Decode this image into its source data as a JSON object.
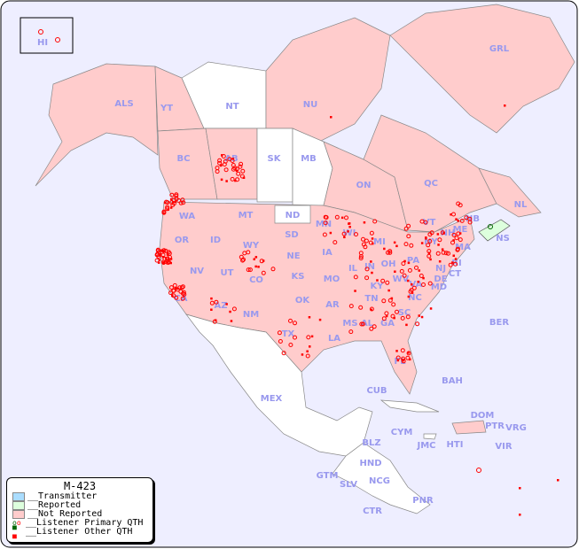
{
  "map": {
    "colors": {
      "ocean": "#eeeeff",
      "not_reported": "#ffcccc",
      "reported": "#ddffdd",
      "transmitter": "#aaddff",
      "no_data": "#ffffff",
      "label": "#9999ee",
      "dot": "#ff0000",
      "primary_dot_green": "#006600"
    },
    "regions": [
      "HI",
      "ALS",
      "YT",
      "NT",
      "NU",
      "GRL",
      "BC",
      "AB",
      "SK",
      "MB",
      "ON",
      "QC",
      "NL",
      "NB",
      "NS",
      "ME",
      "VT",
      "NH",
      "MA",
      "RI",
      "CT",
      "NY",
      "PA",
      "NJ",
      "DE",
      "MD",
      "WA",
      "OR",
      "ID",
      "MT",
      "WY",
      "ND",
      "SD",
      "NE",
      "MN",
      "WI",
      "IA",
      "MI",
      "IL",
      "IN",
      "OH",
      "KS",
      "MO",
      "KY",
      "WV",
      "VA",
      "NV",
      "UT",
      "CO",
      "CA",
      "AZ",
      "NM",
      "OK",
      "AR",
      "TN",
      "NC",
      "SC",
      "MS",
      "AL",
      "GA",
      "TX",
      "LA",
      "FL",
      "MEX",
      "CUB",
      "BAH",
      "BER",
      "DOM",
      "PTR",
      "VRG",
      "CYM",
      "JMC",
      "HTI",
      "VIR",
      "BLZ",
      "HND",
      "GTM",
      "SLV",
      "NCG",
      "CTR",
      "PNR"
    ]
  },
  "legend": {
    "title": "M-423",
    "items": [
      {
        "label": "__Transmitter",
        "color": "#aaddff"
      },
      {
        "label": "__Reported",
        "color": "#ddffdd"
      },
      {
        "label": "__Not Reported",
        "color": "#ffcccc"
      },
      {
        "label": "__Listener Primary QTH",
        "icon": "open-circle"
      },
      {
        "label": "__Listener Other QTH",
        "icon": "filled-square"
      }
    ]
  }
}
